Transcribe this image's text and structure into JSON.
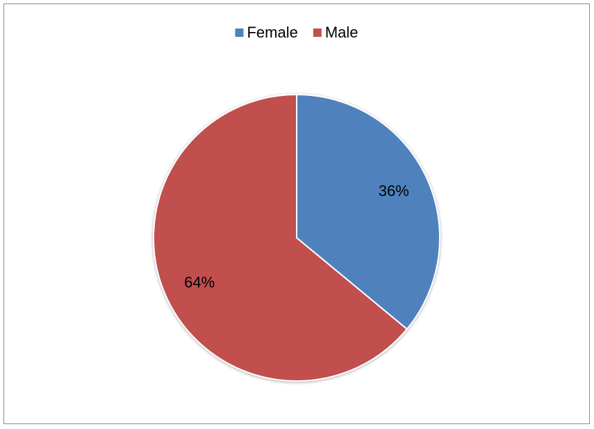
{
  "chart_data": {
    "type": "pie",
    "categories": [
      "Female",
      "Male"
    ],
    "values": [
      36,
      64
    ],
    "value_labels": [
      "36%",
      "64%"
    ],
    "colors": [
      "#4f81bd",
      "#c0504d"
    ],
    "legend": "top"
  }
}
